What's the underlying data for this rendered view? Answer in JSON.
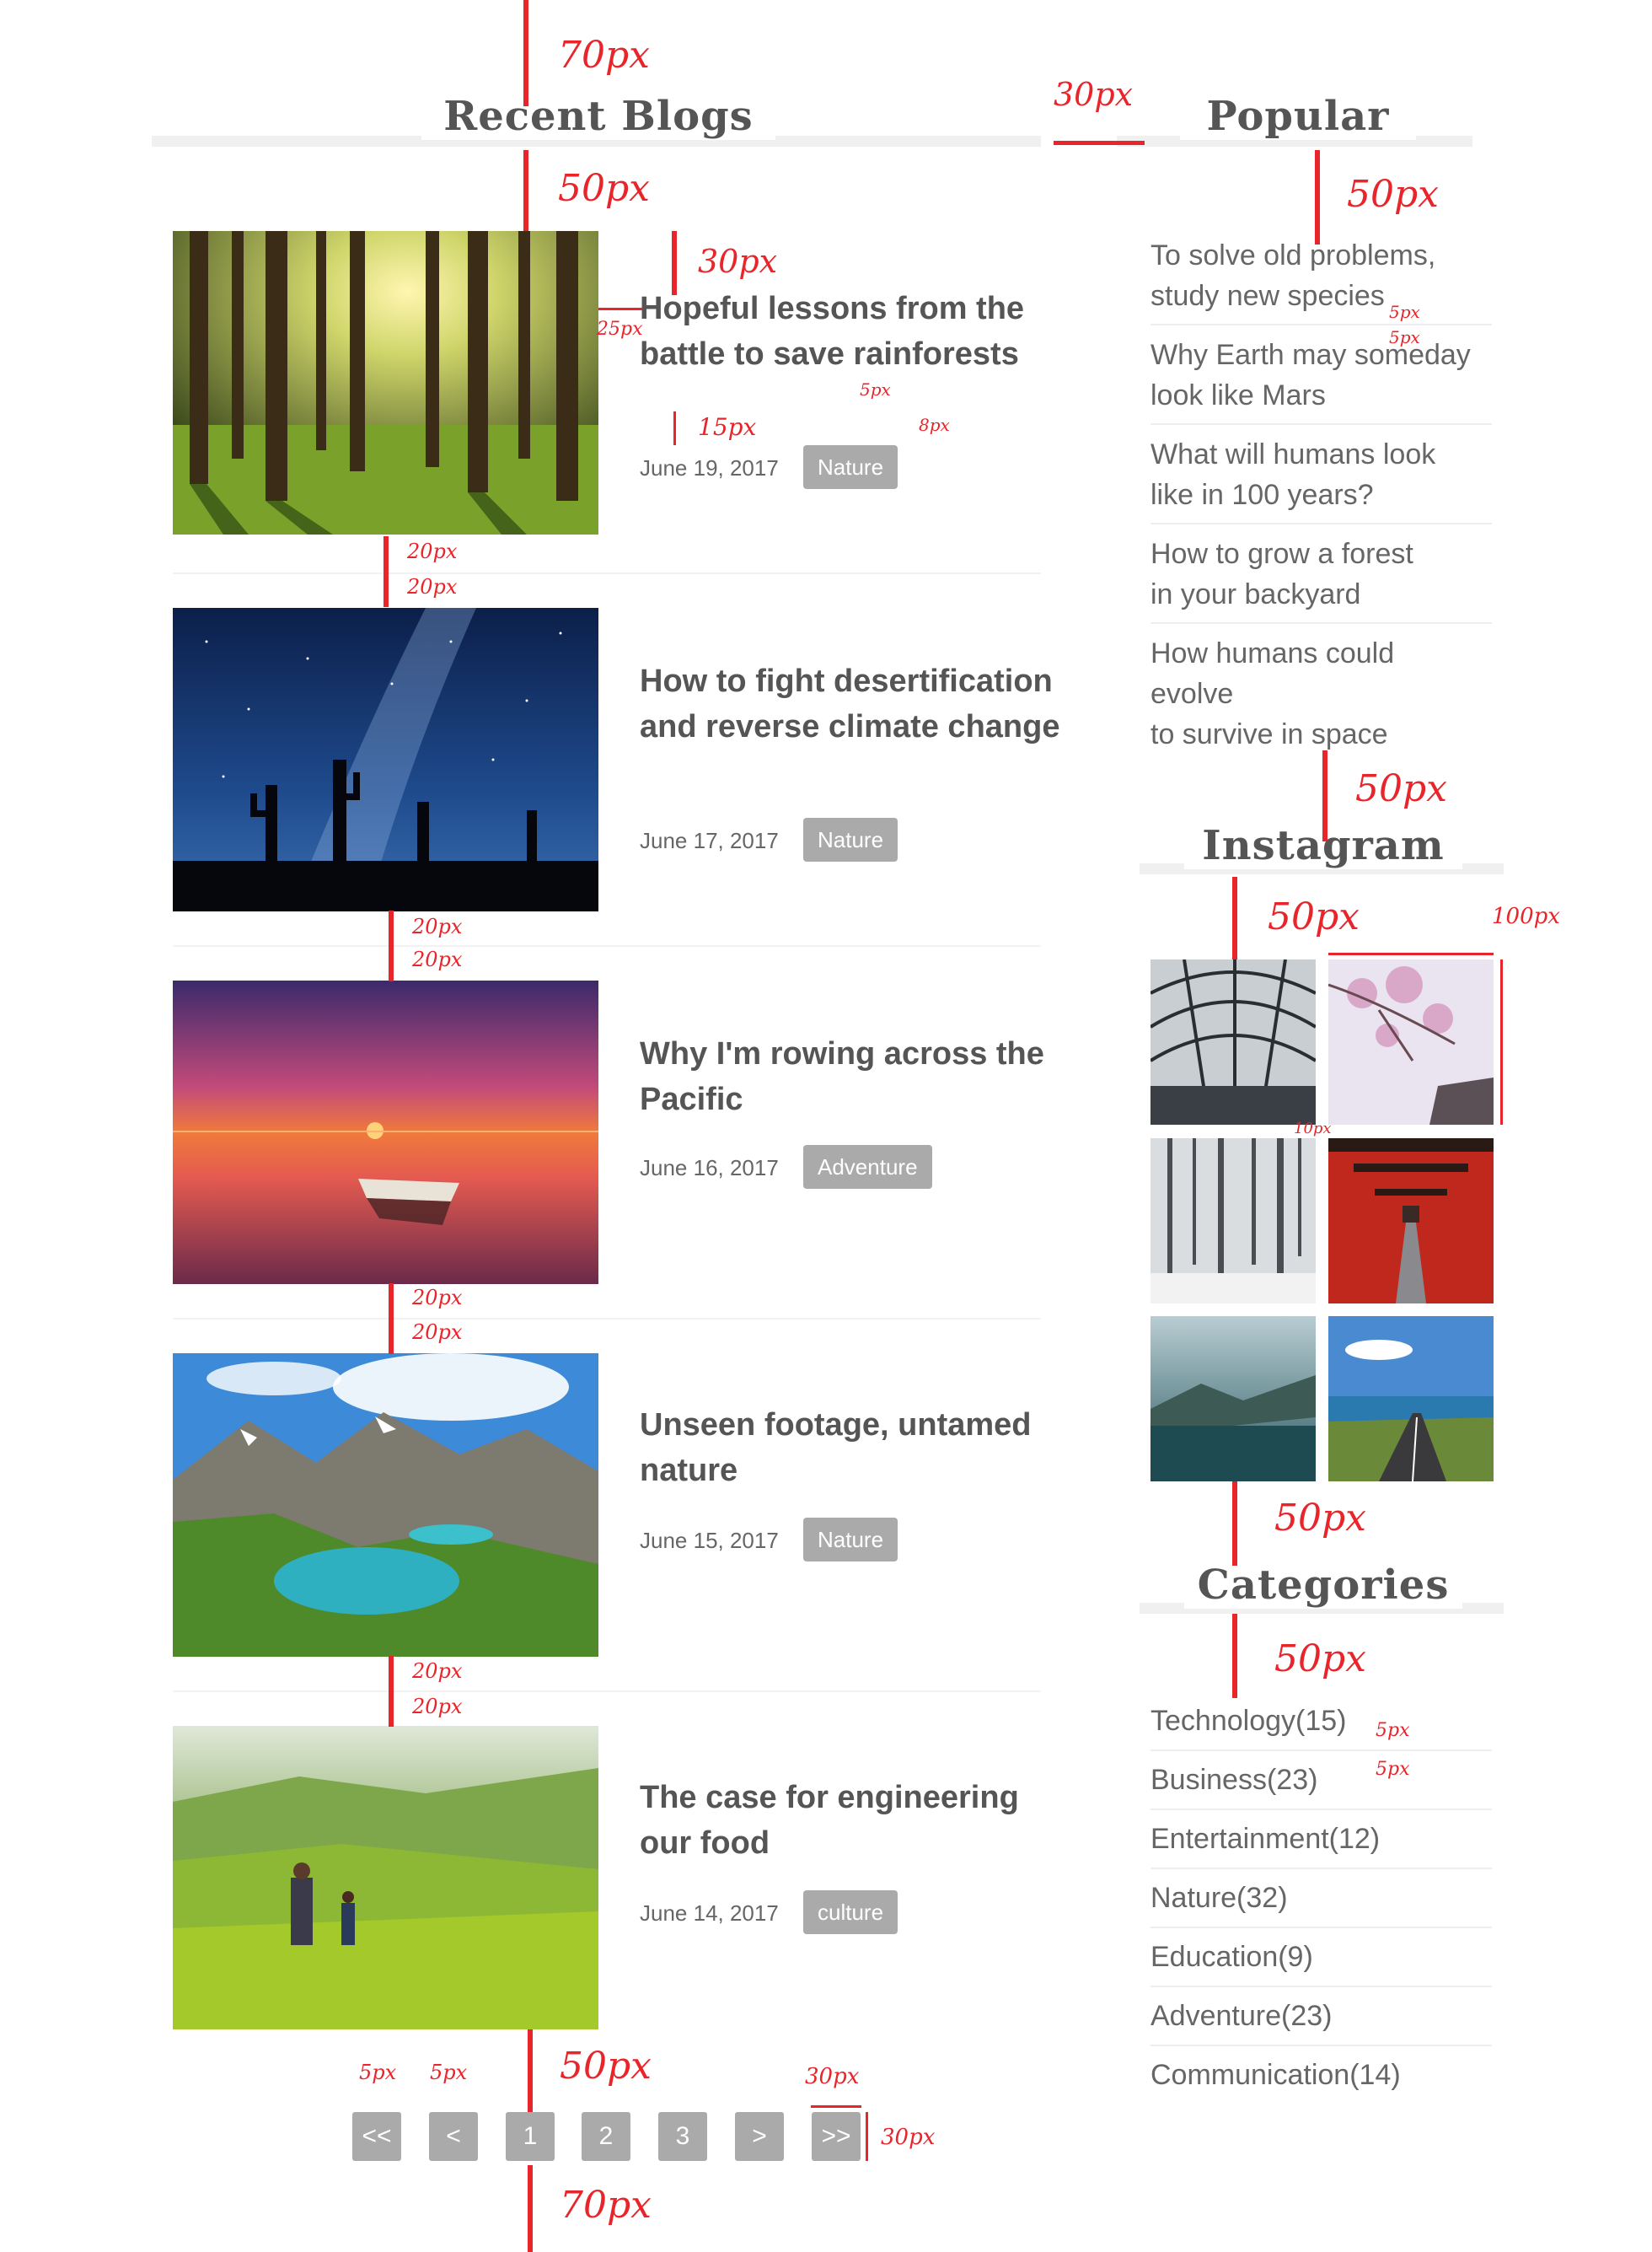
{
  "headings": {
    "recent": "Recent Blogs",
    "popular": "Popular",
    "instagram": "Instagram",
    "categories": "Categories"
  },
  "blogs": [
    {
      "title": "Hopeful lessons from the battle to save rainforests",
      "date": "June 19, 2017",
      "tag": "Nature"
    },
    {
      "title": "How to fight desertification and reverse climate change",
      "date": "June 17, 2017",
      "tag": "Nature"
    },
    {
      "title": "Why I'm rowing across the Pacific",
      "date": "June 16, 2017",
      "tag": "Adventure"
    },
    {
      "title": "Unseen footage, untamed nature",
      "date": "June 15, 2017",
      "tag": "Nature"
    },
    {
      "title": "The case for engineering our food",
      "date": "June 14, 2017",
      "tag": "culture"
    }
  ],
  "popular": [
    {
      "line1": "To solve old problems,",
      "line2": "study new species"
    },
    {
      "line1": "Why Earth may someday",
      "line2": "look like Mars"
    },
    {
      "line1": "What will humans look",
      "line2": "like in 100 years?"
    },
    {
      "line1": "How to grow a forest",
      "line2": "in your backyard"
    },
    {
      "line1": "How humans could",
      "line2": "evolve",
      "line3": "to survive in space"
    }
  ],
  "categories": [
    "Technology(15)",
    "Business(23)",
    "Entertainment(12)",
    "Nature(32)",
    "Education(9)",
    "Adventure(23)",
    "Communication(14)"
  ],
  "pagination": {
    "first": "<<",
    "prev": "<",
    "p1": "1",
    "p2": "2",
    "p3": "3",
    "next": ">",
    "last": ">>"
  },
  "annotations": {
    "a70top": "70px",
    "a50a": "50px",
    "a30gap": "30px",
    "a50pop": "50px",
    "a30img": "30px",
    "a25": "25px",
    "a15": "15px",
    "a5tag": "5px",
    "a8": "8px",
    "a5pop1": "5px",
    "a5pop2": "5px",
    "a20": "20px",
    "a50insta": "50px",
    "a50insta2": "50px",
    "a100": "100px",
    "a10": "10px",
    "a50cat": "50px",
    "a50cat2": "50px",
    "a5cat1": "5px",
    "a5cat2": "5px",
    "a50page": "50px",
    "a5p1": "5px",
    "a5p2": "5px",
    "a30pw": "30px",
    "a30ph": "30px",
    "a70bottom": "70px"
  },
  "colors": {
    "annotation": "#e8252a",
    "tag_bg": "#aaaaaa",
    "text": "#555555",
    "rule": "#f0f0f0"
  },
  "icons": [
    "double-arrow-annotation-icon"
  ]
}
